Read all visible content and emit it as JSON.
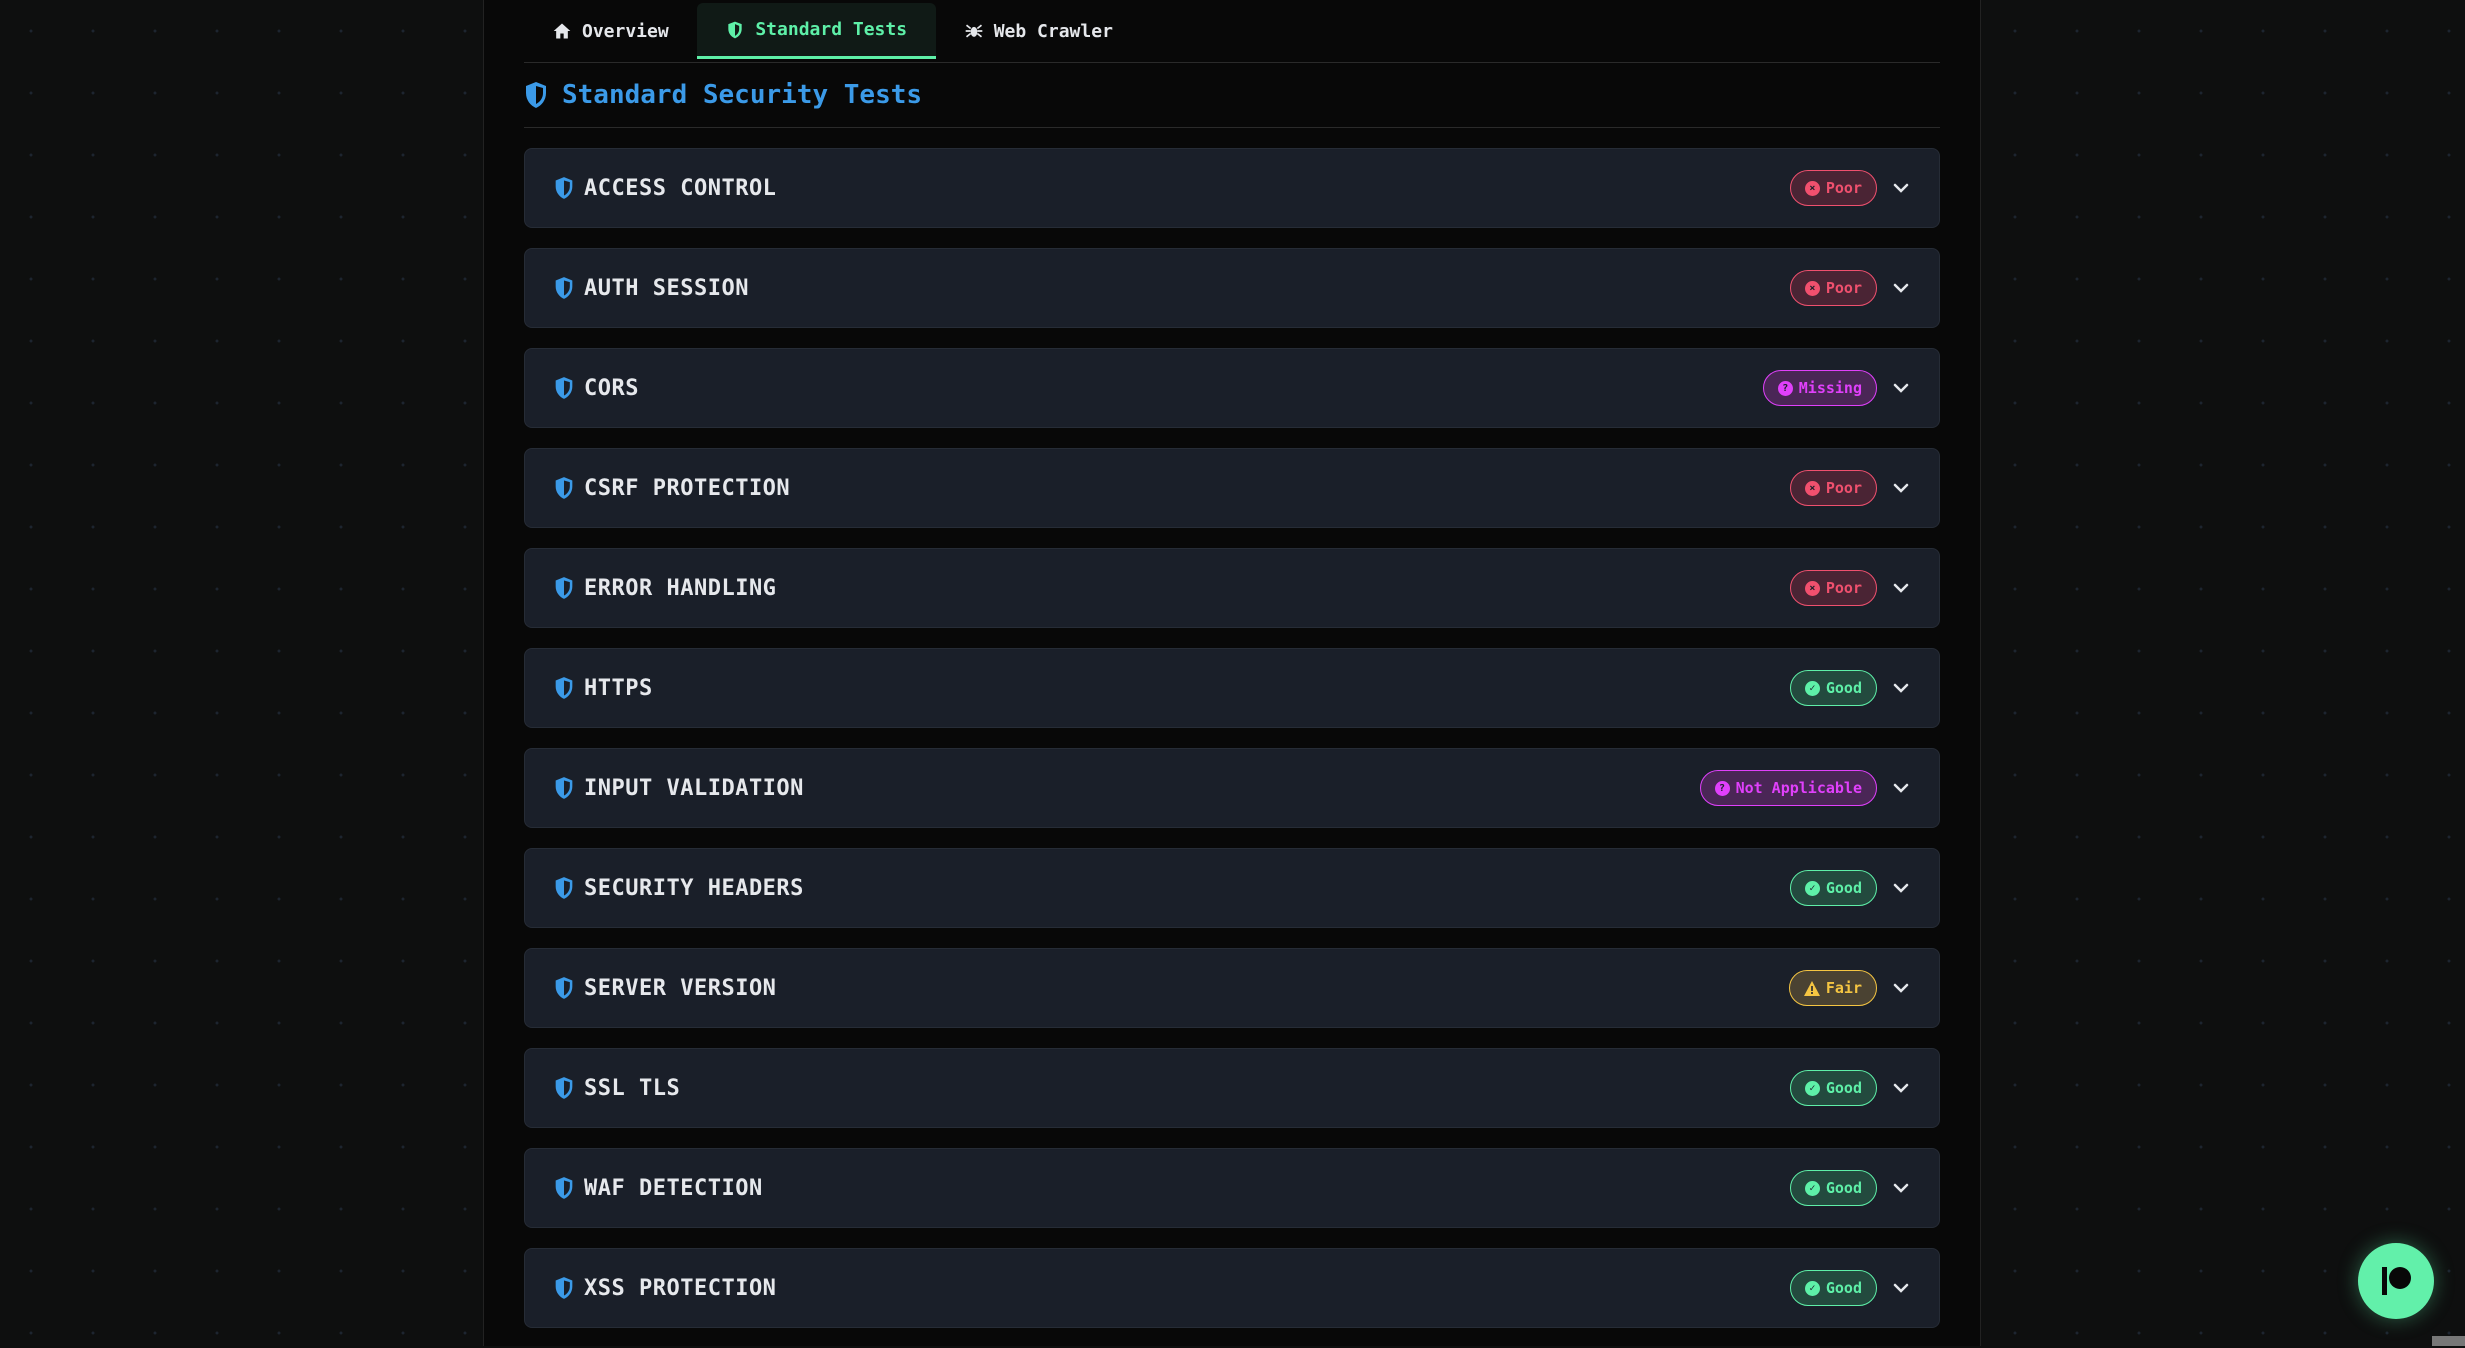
{
  "tabs": [
    {
      "label": "Overview",
      "icon": "home-icon",
      "active": false
    },
    {
      "label": "Standard Tests",
      "icon": "shield-icon",
      "active": true
    },
    {
      "label": "Web Crawler",
      "icon": "spider-icon",
      "active": false
    }
  ],
  "section": {
    "title": "Standard Security Tests",
    "icon": "shield-icon"
  },
  "status_colors": {
    "Poor": {
      "fg": "#f0506e",
      "bg": "#4a2434",
      "icon": "x-circle-icon"
    },
    "Missing": {
      "fg": "#e040fb",
      "bg": "#4a2656",
      "icon": "question-circle-icon"
    },
    "Not Applicable": {
      "fg": "#e040fb",
      "bg": "#4a2656",
      "icon": "question-circle-icon"
    },
    "Good": {
      "fg": "#5ef0a8",
      "bg": "#234a3e",
      "icon": "check-circle-icon"
    },
    "Fair": {
      "fg": "#f5c542",
      "bg": "#4a4232",
      "icon": "warning-icon"
    }
  },
  "tests": [
    {
      "name": "ACCESS CONTROL",
      "status": "Poor"
    },
    {
      "name": "AUTH SESSION",
      "status": "Poor"
    },
    {
      "name": "CORS",
      "status": "Missing"
    },
    {
      "name": "CSRF PROTECTION",
      "status": "Poor"
    },
    {
      "name": "ERROR HANDLING",
      "status": "Poor"
    },
    {
      "name": "HTTPS",
      "status": "Good"
    },
    {
      "name": "INPUT VALIDATION",
      "status": "Not Applicable"
    },
    {
      "name": "SECURITY HEADERS",
      "status": "Good"
    },
    {
      "name": "SERVER VERSION",
      "status": "Fair"
    },
    {
      "name": "SSL TLS",
      "status": "Good"
    },
    {
      "name": "WAF DETECTION",
      "status": "Good"
    },
    {
      "name": "XSS PROTECTION",
      "status": "Good"
    }
  ],
  "fab": {
    "icon": "patreon-icon"
  }
}
